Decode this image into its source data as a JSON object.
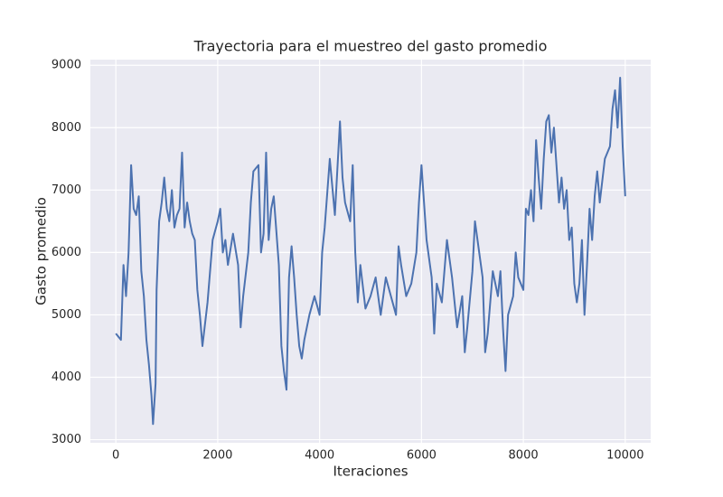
{
  "chart_data": {
    "type": "line",
    "title": "Trayectoria para el muestreo del gasto promedio",
    "x_label": "Iteraciones",
    "y_label": "Gasto promedio",
    "x": [
      0,
      100,
      150,
      200,
      250,
      300,
      350,
      400,
      450,
      500,
      550,
      600,
      650,
      700,
      730,
      780,
      800,
      850,
      900,
      950,
      1000,
      1050,
      1100,
      1150,
      1200,
      1250,
      1300,
      1350,
      1400,
      1450,
      1500,
      1550,
      1600,
      1650,
      1700,
      1800,
      1900,
      2000,
      2050,
      2100,
      2150,
      2200,
      2300,
      2400,
      2450,
      2500,
      2600,
      2650,
      2700,
      2800,
      2850,
      2900,
      2950,
      3000,
      3050,
      3100,
      3200,
      3250,
      3300,
      3350,
      3400,
      3450,
      3500,
      3550,
      3600,
      3650,
      3700,
      3800,
      3900,
      4000,
      4050,
      4100,
      4200,
      4300,
      4400,
      4450,
      4500,
      4600,
      4650,
      4700,
      4750,
      4800,
      4900,
      5000,
      5100,
      5200,
      5300,
      5400,
      5500,
      5550,
      5600,
      5700,
      5800,
      5900,
      5950,
      6000,
      6050,
      6100,
      6200,
      6250,
      6300,
      6400,
      6500,
      6600,
      6700,
      6800,
      6850,
      6900,
      7000,
      7050,
      7100,
      7200,
      7250,
      7300,
      7400,
      7500,
      7550,
      7600,
      7650,
      7700,
      7800,
      7850,
      7900,
      8000,
      8050,
      8100,
      8150,
      8200,
      8250,
      8300,
      8350,
      8400,
      8450,
      8500,
      8550,
      8600,
      8650,
      8700,
      8750,
      8800,
      8850,
      8900,
      8950,
      9000,
      9050,
      9100,
      9150,
      9200,
      9250,
      9300,
      9350,
      9400,
      9450,
      9500,
      9600,
      9700,
      9750,
      9800,
      9850,
      9900,
      9950,
      10000
    ],
    "series": [
      {
        "name": "Gasto promedio",
        "color": "#4c72b0",
        "values": [
          4700,
          4600,
          5800,
          5300,
          6000,
          7400,
          6700,
          6600,
          6900,
          5700,
          5300,
          4600,
          4200,
          3700,
          3250,
          3900,
          5400,
          6500,
          6800,
          7200,
          6700,
          6500,
          7000,
          6400,
          6600,
          6700,
          7600,
          6400,
          6800,
          6500,
          6300,
          6200,
          5400,
          5000,
          4500,
          5200,
          6200,
          6500,
          6700,
          6000,
          6200,
          5800,
          6300,
          5800,
          4800,
          5300,
          6000,
          6800,
          7300,
          7400,
          6000,
          6300,
          7600,
          6200,
          6700,
          6900,
          5800,
          4500,
          4100,
          3800,
          5600,
          6100,
          5600,
          5000,
          4500,
          4300,
          4600,
          5000,
          5300,
          5000,
          6000,
          6400,
          7500,
          6600,
          8100,
          7200,
          6800,
          6500,
          7400,
          6000,
          5200,
          5800,
          5100,
          5300,
          5600,
          5000,
          5600,
          5300,
          5000,
          6100,
          5800,
          5300,
          5500,
          6000,
          6800,
          7400,
          6800,
          6200,
          5600,
          4700,
          5500,
          5200,
          6200,
          5600,
          4800,
          5300,
          4400,
          4800,
          5700,
          6500,
          6200,
          5600,
          4400,
          4700,
          5700,
          5300,
          5700,
          4800,
          4100,
          5000,
          5300,
          6000,
          5600,
          5400,
          6700,
          6600,
          7000,
          6500,
          7800,
          7200,
          6700,
          7500,
          8100,
          8200,
          7600,
          8000,
          7400,
          6800,
          7200,
          6700,
          7000,
          6200,
          6400,
          5500,
          5200,
          5500,
          6200,
          5000,
          5800,
          6700,
          6200,
          6900,
          7300,
          6800,
          7500,
          7700,
          8300,
          8600,
          8000,
          8800,
          7700,
          6900
        ]
      }
    ],
    "xlim": [
      -500,
      10500
    ],
    "ylim": [
      2950,
      9090
    ],
    "xticks": [
      0,
      2000,
      4000,
      6000,
      8000,
      10000
    ],
    "yticks": [
      3000,
      4000,
      5000,
      6000,
      7000,
      8000,
      9000
    ],
    "grid": true
  }
}
